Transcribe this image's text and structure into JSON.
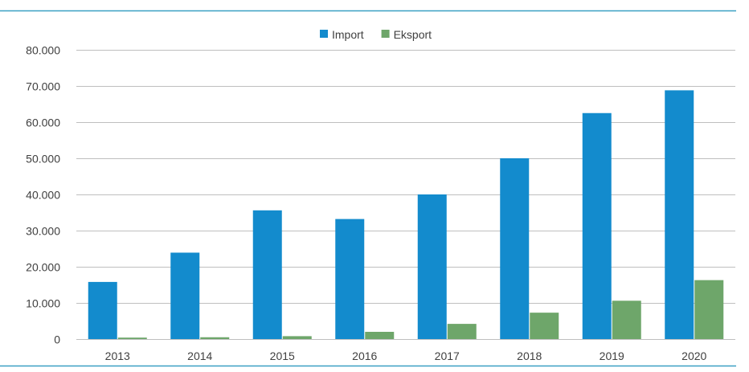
{
  "chart_data": {
    "type": "bar",
    "categories": [
      "2013",
      "2014",
      "2015",
      "2016",
      "2017",
      "2018",
      "2019",
      "2020"
    ],
    "series": [
      {
        "name": "Import",
        "color": "#138bcd",
        "values": [
          15800,
          23900,
          35600,
          33200,
          40000,
          50000,
          62500,
          68800
        ]
      },
      {
        "name": "Eksport",
        "color": "#6ea66a",
        "values": [
          400,
          500,
          800,
          2000,
          4200,
          7300,
          10600,
          16300
        ]
      }
    ],
    "ylim": [
      0,
      80000
    ],
    "yticks": [
      0,
      10000,
      20000,
      30000,
      40000,
      50000,
      60000,
      70000,
      80000
    ],
    "ytick_labels": [
      "0",
      "10.000",
      "20.000",
      "30.000",
      "40.000",
      "50.000",
      "60.000",
      "70.000",
      "80.000"
    ],
    "grid": true,
    "legend_position": "top-center",
    "frame_color": "#3aa0c3",
    "grid_color": "#bfbfbf"
  }
}
